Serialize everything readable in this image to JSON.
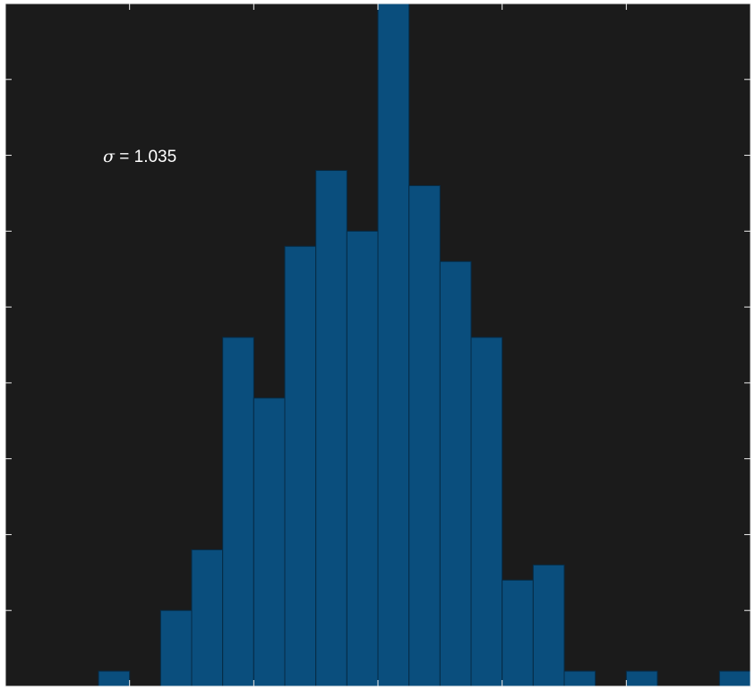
{
  "chart_data": {
    "type": "bar",
    "title": "",
    "xlabel": "",
    "ylabel": "",
    "grid": false,
    "legend": "none",
    "bin_count": 24,
    "ylim": [
      0,
      45
    ],
    "values": [
      0,
      0,
      0,
      1,
      0,
      5,
      9,
      23,
      19,
      29,
      34,
      30,
      45,
      33,
      28,
      23,
      7,
      8,
      1,
      0,
      1,
      0,
      0,
      1
    ],
    "annotation": {
      "symbol": "σ",
      "text": " = 1.035"
    },
    "colors": {
      "background": "#1b1b1b",
      "bar_fill": "#0a4e7d",
      "bar_edge": "#062b45",
      "axis": "#f0f0f0"
    }
  }
}
